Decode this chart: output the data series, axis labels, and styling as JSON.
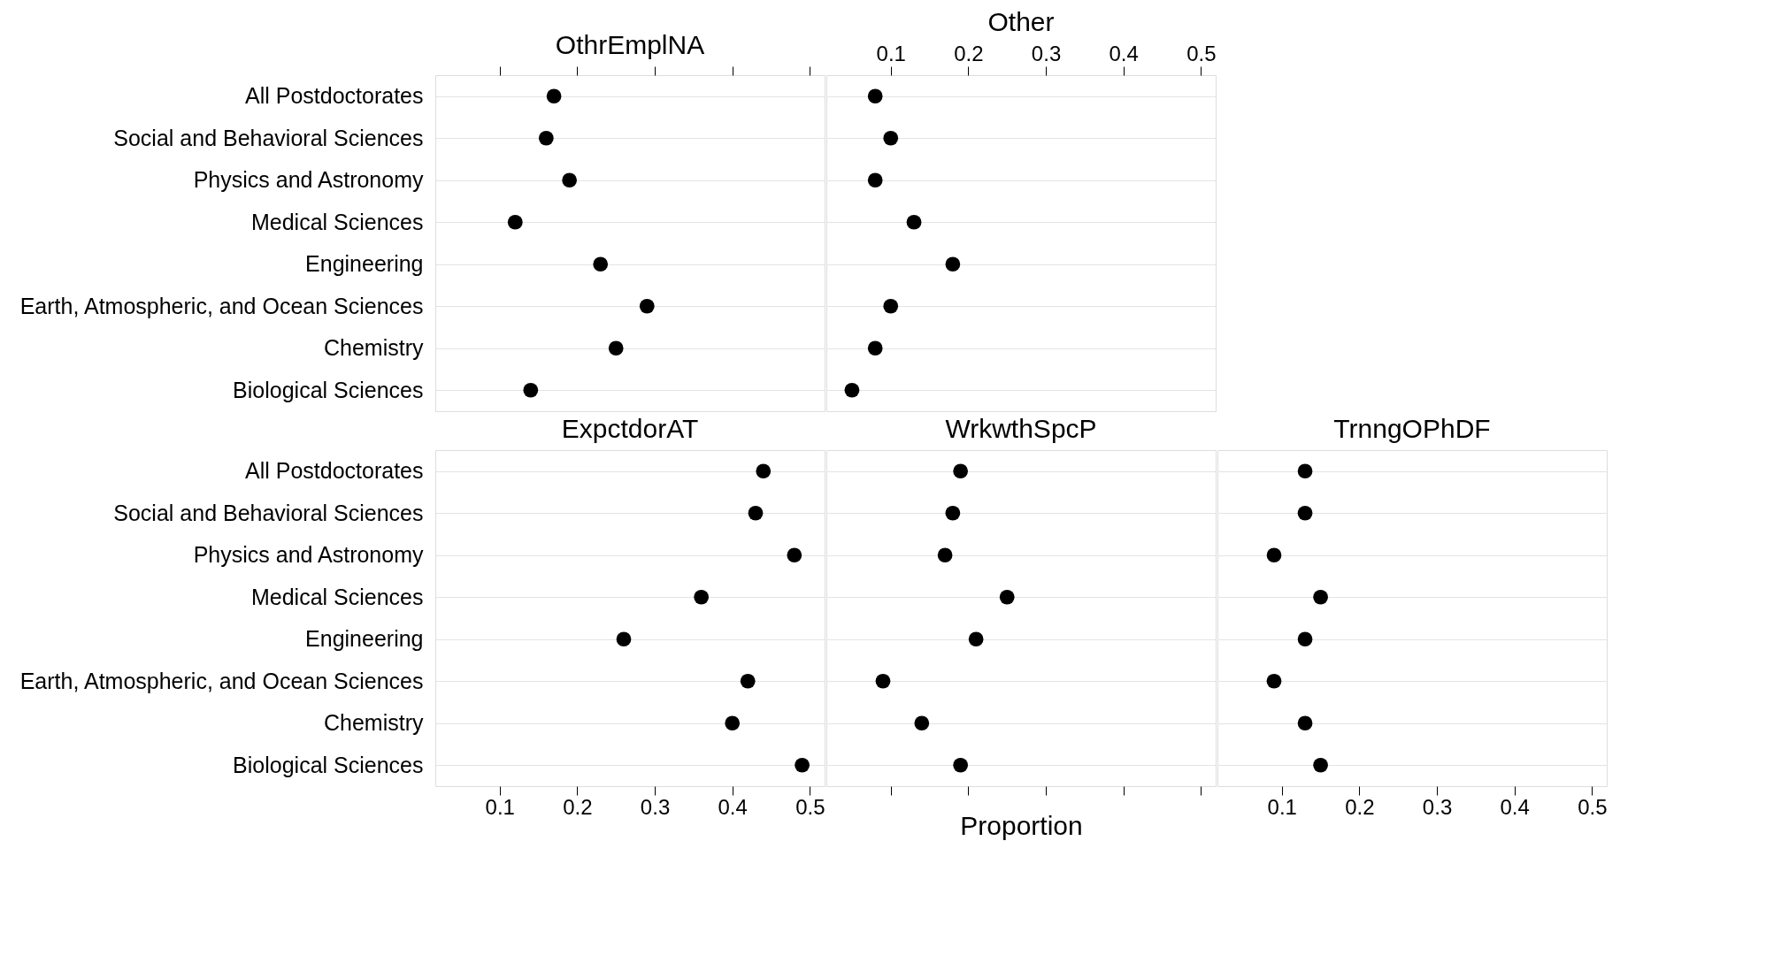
{
  "chart_data": [
    {
      "type": "scatter",
      "orientation": "horizontal",
      "title": "OthrEmplNA",
      "categories": [
        "All Postdoctorates",
        "Social and Behavioral Sciences",
        "Physics and Astronomy",
        "Medical Sciences",
        "Engineering",
        "Earth, Atmospheric, and Ocean Sciences",
        "Chemistry",
        "Biological Sciences"
      ],
      "series": [
        {
          "color": "#000000",
          "values": [
            0.17,
            0.16,
            0.19,
            0.12,
            0.23,
            0.29,
            0.25,
            0.14
          ]
        }
      ],
      "xlim": [
        0.017,
        0.519
      ],
      "xticks": [
        0.1,
        0.2,
        0.3,
        0.4,
        0.5
      ],
      "tick_labels": "y",
      "marker": "circle",
      "grid": "y"
    },
    {
      "type": "scatter",
      "orientation": "horizontal",
      "title": "Other",
      "categories": [
        "All Postdoctorates",
        "Social and Behavioral Sciences",
        "Physics and Astronomy",
        "Medical Sciences",
        "Engineering",
        "Earth, Atmospheric, and Ocean Sciences",
        "Chemistry",
        "Biological Sciences"
      ],
      "series": [
        {
          "color": "#000000",
          "values": [
            0.08,
            0.1,
            0.08,
            0.13,
            0.18,
            0.1,
            0.08,
            0.05
          ]
        }
      ],
      "xlim": [
        0.017,
        0.519
      ],
      "xticks": [
        0.1,
        0.2,
        0.3,
        0.4,
        0.5
      ],
      "tick_labels": "x",
      "marker": "circle",
      "grid": "y"
    },
    {
      "type": "scatter",
      "orientation": "horizontal",
      "title": "ExpctdorAT",
      "categories": [
        "All Postdoctorates",
        "Social and Behavioral Sciences",
        "Physics and Astronomy",
        "Medical Sciences",
        "Engineering",
        "Earth, Atmospheric, and Ocean Sciences",
        "Chemistry",
        "Biological Sciences"
      ],
      "series": [
        {
          "color": "#000000",
          "values": [
            0.44,
            0.43,
            0.48,
            0.36,
            0.26,
            0.42,
            0.4,
            0.49
          ]
        }
      ],
      "xlim": [
        0.017,
        0.519
      ],
      "xticks": [
        0.1,
        0.2,
        0.3,
        0.4,
        0.5
      ],
      "marker": "circle",
      "grid": "y"
    },
    {
      "type": "scatter",
      "orientation": "horizontal",
      "title": "WrkwthSpcP",
      "xlabel": "Proportion",
      "categories": [
        "All Postdoctorates",
        "Social and Behavioral Sciences",
        "Physics and Astronomy",
        "Medical Sciences",
        "Engineering",
        "Earth, Atmospheric, and Ocean Sciences",
        "Chemistry",
        "Biological Sciences"
      ],
      "series": [
        {
          "color": "#000000",
          "values": [
            0.19,
            0.18,
            0.17,
            0.25,
            0.21,
            0.09,
            0.14,
            0.19
          ]
        }
      ],
      "xlim": [
        0.017,
        0.519
      ],
      "xticks": [
        0.1,
        0.2,
        0.3,
        0.4,
        0.5
      ],
      "tick_labels": false,
      "marker": "circle",
      "grid": "y"
    },
    {
      "type": "scatter",
      "orientation": "horizontal",
      "title": "TrnngOPhDF",
      "categories": [
        "All Postdoctorates",
        "Social and Behavioral Sciences",
        "Physics and Astronomy",
        "Medical Sciences",
        "Engineering",
        "Earth, Atmospheric, and Ocean Sciences",
        "Chemistry",
        "Biological Sciences"
      ],
      "series": [
        {
          "color": "#000000",
          "values": [
            0.13,
            0.13,
            0.09,
            0.15,
            0.13,
            0.09,
            0.13,
            0.15
          ]
        }
      ],
      "xlim": [
        0.017,
        0.519
      ],
      "xticks": [
        0.1,
        0.2,
        0.3,
        0.4,
        0.5
      ],
      "tick_labels": "x",
      "marker": "circle",
      "grid": "y"
    }
  ]
}
